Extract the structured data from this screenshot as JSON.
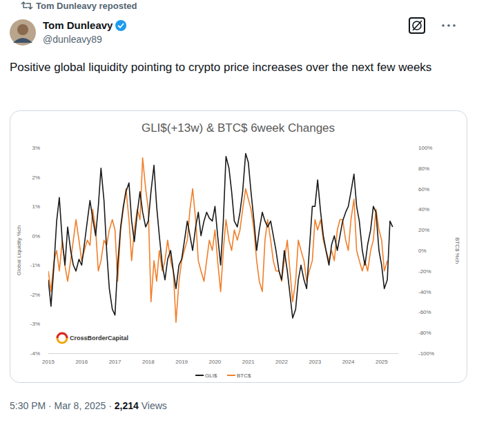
{
  "tweet": {
    "reposted": "Tom Dunleavy reposted",
    "name": "Tom Dunleavy",
    "handle": "@dunleavy89",
    "text": "Positive global liquidity pointing to crypto price increases over the next few weeks",
    "time": "5:30 PM",
    "separator": "·",
    "date": "Mar 8, 2025",
    "views": "2,214",
    "views_label": "Views"
  },
  "chart_data": {
    "type": "line",
    "title": "GLI$(+13w) & BTC$ 6week Changes",
    "ylabel": "Global Liquidity %ch",
    "y2label": "BTC$ %ch",
    "annotations": [
      "CrossBorderCapital"
    ],
    "legend": "bottom",
    "grid": false,
    "x": [
      2015,
      2015.08,
      2015.17,
      2015.25,
      2015.33,
      2015.42,
      2015.5,
      2015.58,
      2015.67,
      2015.75,
      2015.83,
      2015.92,
      2016,
      2016.08,
      2016.17,
      2016.25,
      2016.33,
      2016.42,
      2016.5,
      2016.58,
      2016.67,
      2016.75,
      2016.83,
      2016.92,
      2017,
      2017.08,
      2017.17,
      2017.25,
      2017.33,
      2017.42,
      2017.5,
      2017.58,
      2017.67,
      2017.75,
      2017.83,
      2017.92,
      2018,
      2018.08,
      2018.17,
      2018.25,
      2018.33,
      2018.42,
      2018.5,
      2018.58,
      2018.67,
      2018.75,
      2018.83,
      2018.92,
      2019,
      2019.08,
      2019.17,
      2019.25,
      2019.33,
      2019.42,
      2019.5,
      2019.58,
      2019.67,
      2019.75,
      2019.83,
      2019.92,
      2020,
      2020.08,
      2020.17,
      2020.25,
      2020.33,
      2020.42,
      2020.5,
      2020.58,
      2020.67,
      2020.75,
      2020.83,
      2020.92,
      2021,
      2021.08,
      2021.17,
      2021.25,
      2021.33,
      2021.42,
      2021.5,
      2021.58,
      2021.67,
      2021.75,
      2021.83,
      2021.92,
      2022,
      2022.08,
      2022.17,
      2022.25,
      2022.33,
      2022.42,
      2022.5,
      2022.58,
      2022.67,
      2022.75,
      2022.83,
      2022.92,
      2023,
      2023.08,
      2023.17,
      2023.25,
      2023.33,
      2023.42,
      2023.5,
      2023.58,
      2023.67,
      2023.75,
      2023.83,
      2023.92,
      2024,
      2024.08,
      2024.17,
      2024.25,
      2024.33,
      2024.42,
      2024.5,
      2024.58,
      2024.67,
      2024.75,
      2024.83,
      2024.92,
      2025,
      2025.08,
      2025.17,
      2025.25,
      2025.33
    ],
    "series": [
      {
        "name": "GLI$",
        "color": "#1a1a1a",
        "values": [
          -1.5,
          -2.4,
          -1.0,
          0.5,
          1.3,
          -0.2,
          -1.0,
          0.3,
          -0.5,
          -1.0,
          -1.2,
          -0.8,
          -1.0,
          -0.3,
          0.5,
          1.2,
          0.6,
          0.0,
          1.0,
          2.3,
          1.2,
          -0.5,
          -1.8,
          -2.5,
          -2.7,
          -1.0,
          0.3,
          1.0,
          1.5,
          1.8,
          0.5,
          -0.2,
          0.8,
          1.5,
          0.8,
          0.3,
          0.5,
          1.5,
          2.4,
          1.0,
          0.0,
          -1.0,
          -1.5,
          -0.8,
          -0.5,
          -1.2,
          -1.8,
          -1.0,
          -0.8,
          -0.2,
          0.5,
          0.0,
          -0.5,
          0.3,
          0.8,
          0.0,
          0.5,
          0.8,
          0.6,
          0.5,
          1.0,
          0.0,
          -1.0,
          0.5,
          2.7,
          2.3,
          1.5,
          0.5,
          0.3,
          0.8,
          1.5,
          2.8,
          2.5,
          1.5,
          0.5,
          -0.5,
          0.2,
          0.8,
          0.5,
          0.3,
          0.5,
          0.0,
          -0.5,
          -1.2,
          -1.5,
          -0.5,
          -1.2,
          -2.0,
          -2.8,
          -2.5,
          -1.5,
          -1.0,
          -1.5,
          -1.8,
          -0.5,
          1.0,
          1.0,
          1.9,
          0.8,
          0.0,
          -0.5,
          -1.0,
          -0.3,
          0.0,
          -0.5,
          0.0,
          0.5,
          0.8,
          1.0,
          1.5,
          2.1,
          1.0,
          0.5,
          -0.5,
          -1.0,
          -0.3,
          0.2,
          1.0,
          0.8,
          -0.5,
          -1.0,
          -1.8,
          -1.5,
          0.5,
          0.3
        ]
      },
      {
        "name": "BTC$",
        "color": "#f07f2a",
        "axis": "y2",
        "values": [
          -20,
          -40,
          -10,
          0,
          -20,
          10,
          -15,
          -30,
          -10,
          10,
          30,
          10,
          -10,
          0,
          10,
          5,
          40,
          20,
          -20,
          -10,
          10,
          5,
          20,
          30,
          20,
          -30,
          20,
          40,
          60,
          30,
          -10,
          20,
          40,
          30,
          90,
          60,
          40,
          -50,
          -10,
          -30,
          0,
          -20,
          -10,
          10,
          -10,
          -20,
          -70,
          -30,
          -10,
          0,
          10,
          40,
          60,
          30,
          -10,
          -20,
          -30,
          -10,
          10,
          0,
          20,
          -10,
          -40,
          0,
          30,
          10,
          0,
          20,
          10,
          20,
          40,
          60,
          50,
          40,
          20,
          -10,
          -30,
          -40,
          10,
          30,
          10,
          -10,
          -20,
          -20,
          -30,
          -10,
          10,
          -20,
          -50,
          -30,
          10,
          0,
          -10,
          -30,
          -20,
          -10,
          30,
          20,
          30,
          10,
          0,
          -10,
          0,
          -10,
          20,
          30,
          30,
          10,
          0,
          30,
          50,
          0,
          -10,
          -20,
          -10,
          -20,
          0,
          10,
          40,
          20,
          10,
          -20,
          -10,
          null,
          null
        ]
      }
    ],
    "xlim": [
      2015,
      2025.5
    ],
    "xticks": [
      2015,
      2016,
      2017,
      2018,
      2019,
      2020,
      2021,
      2022,
      2023,
      2024,
      2025
    ],
    "ylim": [
      -4,
      3
    ],
    "yticks": [
      {
        "value": -4,
        "label": "-4%"
      },
      {
        "value": -3,
        "label": "-3%"
      },
      {
        "value": -2,
        "label": "-2%"
      },
      {
        "value": -1,
        "label": "-1%"
      },
      {
        "value": 0,
        "label": "0%"
      },
      {
        "value": 1,
        "label": "1%"
      },
      {
        "value": 2,
        "label": "2%"
      },
      {
        "value": 3,
        "label": "3%"
      }
    ],
    "y2lim": [
      -100,
      100
    ],
    "y2ticks": [
      {
        "value": -100,
        "label": "-100%"
      },
      {
        "value": -80,
        "label": "-80%"
      },
      {
        "value": -60,
        "label": "-60%"
      },
      {
        "value": -40,
        "label": "-40%"
      },
      {
        "value": -20,
        "label": "-20%"
      },
      {
        "value": 0,
        "label": "0%"
      },
      {
        "value": 20,
        "label": "20%"
      },
      {
        "value": 40,
        "label": "40%"
      },
      {
        "value": 60,
        "label": "60%"
      },
      {
        "value": 80,
        "label": "80%"
      },
      {
        "value": 100,
        "label": "100%"
      }
    ]
  }
}
